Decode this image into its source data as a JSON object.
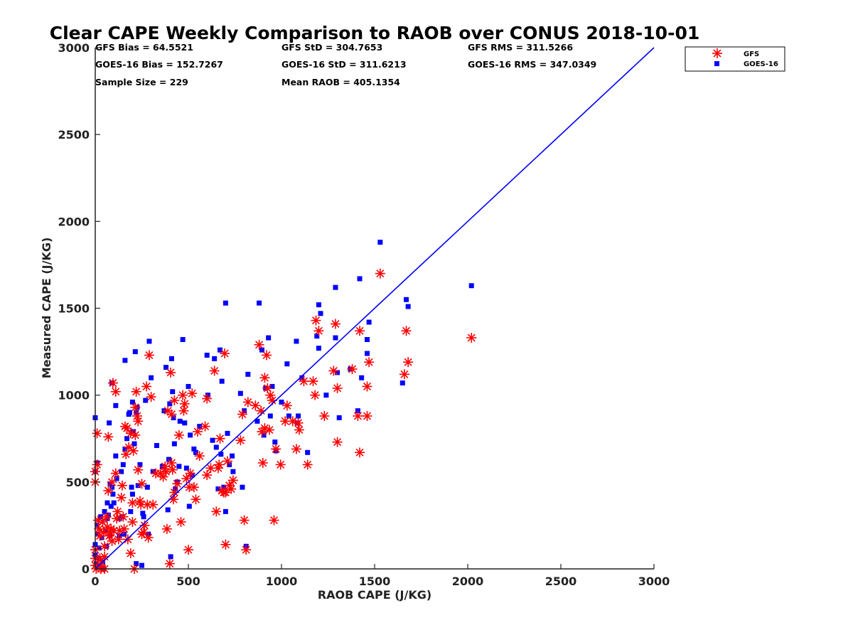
{
  "colors": {
    "gfs": "#ff0000",
    "goes": "#0000ff",
    "line": "#0000ff",
    "axis": "#222222"
  },
  "stats": {
    "gfs_bias": "GFS Bias = 64.5521",
    "gfs_std": "GFS StD = 304.7653",
    "gfs_rms": "GFS RMS = 311.5266",
    "goes_bias": "GOES-16 Bias = 152.7267",
    "goes_std": "GOES-16 StD = 311.6213",
    "goes_rms": "GOES-16 RMS = 347.0349",
    "sample_size": "Sample Size = 229",
    "mean_raob": "Mean RAOB = 405.1354"
  },
  "chart_data": {
    "type": "scatter",
    "title": "Clear CAPE Weekly Comparison to RAOB over CONUS 2018-10-01",
    "xlabel": "RAOB CAPE (J/KG)",
    "ylabel": "Measured CAPE (J/KG)",
    "xlim": [
      0,
      3000
    ],
    "ylim": [
      0,
      3000
    ],
    "xticks": [
      0,
      500,
      1000,
      1500,
      2000,
      2500,
      3000
    ],
    "yticks": [
      0,
      500,
      1000,
      1500,
      2000,
      2500,
      3000
    ],
    "grid": false,
    "legend_position": "top-right",
    "reference_line": [
      [
        0,
        0
      ],
      [
        3000,
        3000
      ]
    ],
    "series": [
      {
        "name": "GFS",
        "marker": "asterisk",
        "color": "#ff0000",
        "points": [
          [
            0,
            560
          ],
          [
            0,
            500
          ],
          [
            0,
            110
          ],
          [
            0,
            60
          ],
          [
            0,
            20
          ],
          [
            5,
            0
          ],
          [
            10,
            780
          ],
          [
            10,
            600
          ],
          [
            15,
            280
          ],
          [
            20,
            230
          ],
          [
            25,
            190
          ],
          [
            25,
            60
          ],
          [
            30,
            20
          ],
          [
            30,
            0
          ],
          [
            40,
            270
          ],
          [
            45,
            210
          ],
          [
            50,
            130
          ],
          [
            50,
            70
          ],
          [
            50,
            0
          ],
          [
            60,
            300
          ],
          [
            65,
            240
          ],
          [
            70,
            450
          ],
          [
            70,
            760
          ],
          [
            75,
            190
          ],
          [
            80,
            210
          ],
          [
            85,
            230
          ],
          [
            90,
            500
          ],
          [
            90,
            160
          ],
          [
            95,
            1070
          ],
          [
            100,
            220
          ],
          [
            110,
            1020
          ],
          [
            110,
            550
          ],
          [
            115,
            290
          ],
          [
            120,
            330
          ],
          [
            125,
            170
          ],
          [
            130,
            220
          ],
          [
            140,
            410
          ],
          [
            145,
            480
          ],
          [
            150,
            300
          ],
          [
            155,
            230
          ],
          [
            160,
            820
          ],
          [
            165,
            660
          ],
          [
            170,
            810
          ],
          [
            175,
            170
          ],
          [
            180,
            700
          ],
          [
            190,
            780
          ],
          [
            190,
            90
          ],
          [
            200,
            380
          ],
          [
            200,
            270
          ],
          [
            205,
            680
          ],
          [
            210,
            0
          ],
          [
            215,
            930
          ],
          [
            215,
            770
          ],
          [
            220,
            1020
          ],
          [
            225,
            880
          ],
          [
            230,
            850
          ],
          [
            230,
            570
          ],
          [
            240,
            390
          ],
          [
            245,
            370
          ],
          [
            250,
            490
          ],
          [
            250,
            200
          ],
          [
            260,
            210
          ],
          [
            265,
            250
          ],
          [
            275,
            1050
          ],
          [
            280,
            370
          ],
          [
            285,
            180
          ],
          [
            290,
            1230
          ],
          [
            300,
            990
          ],
          [
            310,
            370
          ],
          [
            325,
            550
          ],
          [
            350,
            550
          ],
          [
            365,
            530
          ],
          [
            375,
            590
          ],
          [
            380,
            560
          ],
          [
            385,
            230
          ],
          [
            390,
            910
          ],
          [
            400,
            30
          ],
          [
            405,
            1130
          ],
          [
            410,
            890
          ],
          [
            410,
            610
          ],
          [
            415,
            570
          ],
          [
            420,
            400
          ],
          [
            425,
            440
          ],
          [
            425,
            970
          ],
          [
            440,
            490
          ],
          [
            450,
            770
          ],
          [
            460,
            270
          ],
          [
            470,
            1000
          ],
          [
            475,
            910
          ],
          [
            480,
            950
          ],
          [
            490,
            520
          ],
          [
            500,
            110
          ],
          [
            505,
            470
          ],
          [
            510,
            550
          ],
          [
            520,
            1010
          ],
          [
            530,
            470
          ],
          [
            540,
            400
          ],
          [
            550,
            790
          ],
          [
            560,
            650
          ],
          [
            590,
            820
          ],
          [
            600,
            540
          ],
          [
            600,
            980
          ],
          [
            620,
            580
          ],
          [
            640,
            1140
          ],
          [
            650,
            330
          ],
          [
            660,
            580
          ],
          [
            665,
            600
          ],
          [
            670,
            750
          ],
          [
            680,
            450
          ],
          [
            690,
            440
          ],
          [
            695,
            1240
          ],
          [
            700,
            140
          ],
          [
            700,
            440
          ],
          [
            710,
            620
          ],
          [
            720,
            480
          ],
          [
            730,
            460
          ],
          [
            740,
            510
          ],
          [
            780,
            740
          ],
          [
            790,
            890
          ],
          [
            800,
            280
          ],
          [
            810,
            110
          ],
          [
            820,
            960
          ],
          [
            860,
            940
          ],
          [
            880,
            1290
          ],
          [
            890,
            910
          ],
          [
            895,
            790
          ],
          [
            900,
            610
          ],
          [
            910,
            810
          ],
          [
            910,
            1100
          ],
          [
            920,
            1230
          ],
          [
            925,
            1040
          ],
          [
            935,
            800
          ],
          [
            940,
            1000
          ],
          [
            950,
            970
          ],
          [
            960,
            280
          ],
          [
            970,
            690
          ],
          [
            995,
            600
          ],
          [
            1020,
            850
          ],
          [
            1030,
            940
          ],
          [
            1060,
            850
          ],
          [
            1080,
            690
          ],
          [
            1090,
            840
          ],
          [
            1095,
            800
          ],
          [
            1120,
            1080
          ],
          [
            1140,
            600
          ],
          [
            1170,
            1080
          ],
          [
            1180,
            1000
          ],
          [
            1185,
            1430
          ],
          [
            1200,
            1370
          ],
          [
            1230,
            880
          ],
          [
            1280,
            1140
          ],
          [
            1290,
            1410
          ],
          [
            1300,
            1040
          ],
          [
            1300,
            730
          ],
          [
            1380,
            1150
          ],
          [
            1410,
            880
          ],
          [
            1420,
            1370
          ],
          [
            1420,
            670
          ],
          [
            1460,
            1050
          ],
          [
            1460,
            880
          ],
          [
            1470,
            1190
          ],
          [
            1530,
            1700
          ],
          [
            1660,
            1120
          ],
          [
            1670,
            1370
          ],
          [
            1680,
            1190
          ],
          [
            2020,
            1330
          ]
        ]
      },
      {
        "name": "GOES-16",
        "marker": "square",
        "color": "#0000ff",
        "points": [
          [
            0,
            870
          ],
          [
            0,
            560
          ],
          [
            0,
            140
          ],
          [
            0,
            80
          ],
          [
            5,
            30
          ],
          [
            10,
            610
          ],
          [
            10,
            250
          ],
          [
            15,
            200
          ],
          [
            20,
            120
          ],
          [
            20,
            60
          ],
          [
            25,
            10
          ],
          [
            30,
            300
          ],
          [
            35,
            180
          ],
          [
            40,
            40
          ],
          [
            45,
            0
          ],
          [
            50,
            330
          ],
          [
            55,
            220
          ],
          [
            60,
            130
          ],
          [
            65,
            380
          ],
          [
            65,
            290
          ],
          [
            70,
            310
          ],
          [
            75,
            840
          ],
          [
            80,
            490
          ],
          [
            80,
            190
          ],
          [
            85,
            360
          ],
          [
            90,
            470
          ],
          [
            90,
            1070
          ],
          [
            95,
            430
          ],
          [
            100,
            380
          ],
          [
            110,
            940
          ],
          [
            110,
            650
          ],
          [
            115,
            520
          ],
          [
            130,
            290
          ],
          [
            130,
            190
          ],
          [
            140,
            560
          ],
          [
            145,
            300
          ],
          [
            150,
            600
          ],
          [
            155,
            200
          ],
          [
            160,
            1200
          ],
          [
            160,
            690
          ],
          [
            170,
            750
          ],
          [
            180,
            890
          ],
          [
            185,
            900
          ],
          [
            190,
            330
          ],
          [
            195,
            470
          ],
          [
            200,
            430
          ],
          [
            200,
            960
          ],
          [
            205,
            790
          ],
          [
            210,
            720
          ],
          [
            215,
            1250
          ],
          [
            220,
            900
          ],
          [
            220,
            30
          ],
          [
            225,
            930
          ],
          [
            230,
            480
          ],
          [
            240,
            600
          ],
          [
            250,
            20
          ],
          [
            255,
            320
          ],
          [
            260,
            300
          ],
          [
            270,
            970
          ],
          [
            280,
            470
          ],
          [
            285,
            200
          ],
          [
            290,
            1310
          ],
          [
            300,
            1100
          ],
          [
            310,
            560
          ],
          [
            330,
            710
          ],
          [
            360,
            590
          ],
          [
            370,
            910
          ],
          [
            380,
            1160
          ],
          [
            390,
            340
          ],
          [
            395,
            630
          ],
          [
            400,
            950
          ],
          [
            405,
            70
          ],
          [
            410,
            1210
          ],
          [
            415,
            1020
          ],
          [
            420,
            870
          ],
          [
            425,
            720
          ],
          [
            430,
            460
          ],
          [
            440,
            500
          ],
          [
            450,
            590
          ],
          [
            455,
            850
          ],
          [
            470,
            1320
          ],
          [
            480,
            840
          ],
          [
            490,
            580
          ],
          [
            500,
            1050
          ],
          [
            505,
            360
          ],
          [
            510,
            770
          ],
          [
            520,
            540
          ],
          [
            530,
            690
          ],
          [
            540,
            670
          ],
          [
            560,
            820
          ],
          [
            600,
            1230
          ],
          [
            605,
            1000
          ],
          [
            630,
            740
          ],
          [
            640,
            1210
          ],
          [
            650,
            700
          ],
          [
            660,
            460
          ],
          [
            670,
            1260
          ],
          [
            675,
            660
          ],
          [
            680,
            1080
          ],
          [
            690,
            470
          ],
          [
            700,
            330
          ],
          [
            700,
            1530
          ],
          [
            710,
            780
          ],
          [
            720,
            600
          ],
          [
            735,
            650
          ],
          [
            740,
            560
          ],
          [
            780,
            1010
          ],
          [
            790,
            470
          ],
          [
            800,
            910
          ],
          [
            810,
            130
          ],
          [
            820,
            1120
          ],
          [
            870,
            850
          ],
          [
            880,
            1530
          ],
          [
            895,
            1260
          ],
          [
            905,
            770
          ],
          [
            915,
            1040
          ],
          [
            930,
            1330
          ],
          [
            940,
            880
          ],
          [
            950,
            1050
          ],
          [
            965,
            730
          ],
          [
            970,
            680
          ],
          [
            1000,
            960
          ],
          [
            1030,
            1180
          ],
          [
            1040,
            880
          ],
          [
            1080,
            1310
          ],
          [
            1085,
            840
          ],
          [
            1090,
            880
          ],
          [
            1110,
            1100
          ],
          [
            1140,
            670
          ],
          [
            1190,
            1340
          ],
          [
            1200,
            1270
          ],
          [
            1200,
            1520
          ],
          [
            1210,
            1470
          ],
          [
            1240,
            1000
          ],
          [
            1290,
            1330
          ],
          [
            1290,
            1620
          ],
          [
            1300,
            1130
          ],
          [
            1310,
            870
          ],
          [
            1370,
            1150
          ],
          [
            1410,
            910
          ],
          [
            1420,
            1670
          ],
          [
            1430,
            1100
          ],
          [
            1460,
            1240
          ],
          [
            1460,
            1320
          ],
          [
            1470,
            1420
          ],
          [
            1530,
            1880
          ],
          [
            1650,
            1070
          ],
          [
            1670,
            1550
          ],
          [
            1680,
            1510
          ],
          [
            2020,
            1630
          ]
        ]
      }
    ]
  }
}
